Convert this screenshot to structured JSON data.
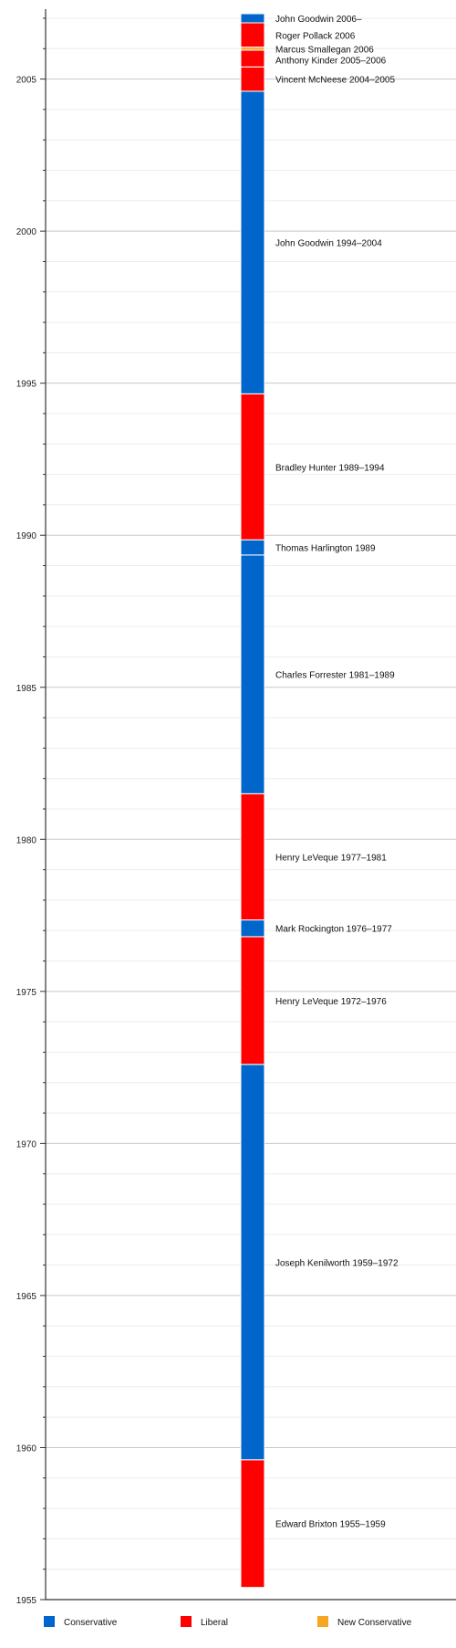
{
  "chart_data": {
    "type": "bar",
    "orientation": "vertical-timeline",
    "y_axis": {
      "range": [
        1955,
        2007.3
      ],
      "major_ticks": [
        1955,
        1960,
        1965,
        1970,
        1975,
        1980,
        1985,
        1990,
        1995,
        2000,
        2005
      ],
      "tick_labels": [
        "1955",
        "1960",
        "1965",
        "1970",
        "1975",
        "1980",
        "1985",
        "1990",
        "1995",
        "2000",
        "2005"
      ],
      "minor_tick_step": 1,
      "grid": true
    },
    "colors": {
      "Conservative": "#0066cc",
      "Liberal": "#ff0000",
      "New Conservative": "#f5a623"
    },
    "segments": [
      {
        "label": "Edward Brixton 1955–1959",
        "party": "Liberal",
        "start": 1955.4,
        "end": 1959.6
      },
      {
        "label": "Joseph Kenilworth 1959–1972",
        "party": "Conservative",
        "start": 1959.6,
        "end": 1972.6
      },
      {
        "label": "Henry LeVeque 1972–1976",
        "party": "Liberal",
        "start": 1972.6,
        "end": 1976.8
      },
      {
        "label": "Mark Rockington 1976–1977",
        "party": "Conservative",
        "start": 1976.8,
        "end": 1977.35
      },
      {
        "label": "Henry LeVeque 1977–1981",
        "party": "Liberal",
        "start": 1977.35,
        "end": 1981.5
      },
      {
        "label": "Charles Forrester 1981–1989",
        "party": "Conservative",
        "start": 1981.5,
        "end": 1989.35
      },
      {
        "label": "Thomas Harlington 1989",
        "party": "Conservative",
        "start": 1989.35,
        "end": 1989.85
      },
      {
        "label": "Bradley Hunter 1989–1994",
        "party": "Liberal",
        "start": 1989.85,
        "end": 1994.65
      },
      {
        "label": "John Goodwin 1994–2004",
        "party": "Conservative",
        "start": 1994.65,
        "end": 2004.6
      },
      {
        "label": "Vincent McNeese 2004–2005",
        "party": "Liberal",
        "start": 2004.6,
        "end": 2005.4
      },
      {
        "label": "Anthony Kinder 2005–2006",
        "party": "Liberal",
        "start": 2005.4,
        "end": 2005.95
      },
      {
        "label": "Marcus Smallegan 2006",
        "party": "New Conservative",
        "start": 2005.95,
        "end": 2006.05
      },
      {
        "label": "Roger Pollack 2006",
        "party": "Liberal",
        "start": 2006.05,
        "end": 2006.85
      },
      {
        "label": "John Goodwin 2006–",
        "party": "Conservative",
        "start": 2006.85,
        "end": 2007.15
      }
    ],
    "legend": {
      "placement": "bottom",
      "entries": [
        {
          "name": "Conservative",
          "color": "#0066cc"
        },
        {
          "name": "Liberal",
          "color": "#ff0000"
        },
        {
          "name": "New Conservative",
          "color": "#f5a623"
        }
      ]
    },
    "title": "",
    "xlabel": "",
    "ylabel": ""
  }
}
